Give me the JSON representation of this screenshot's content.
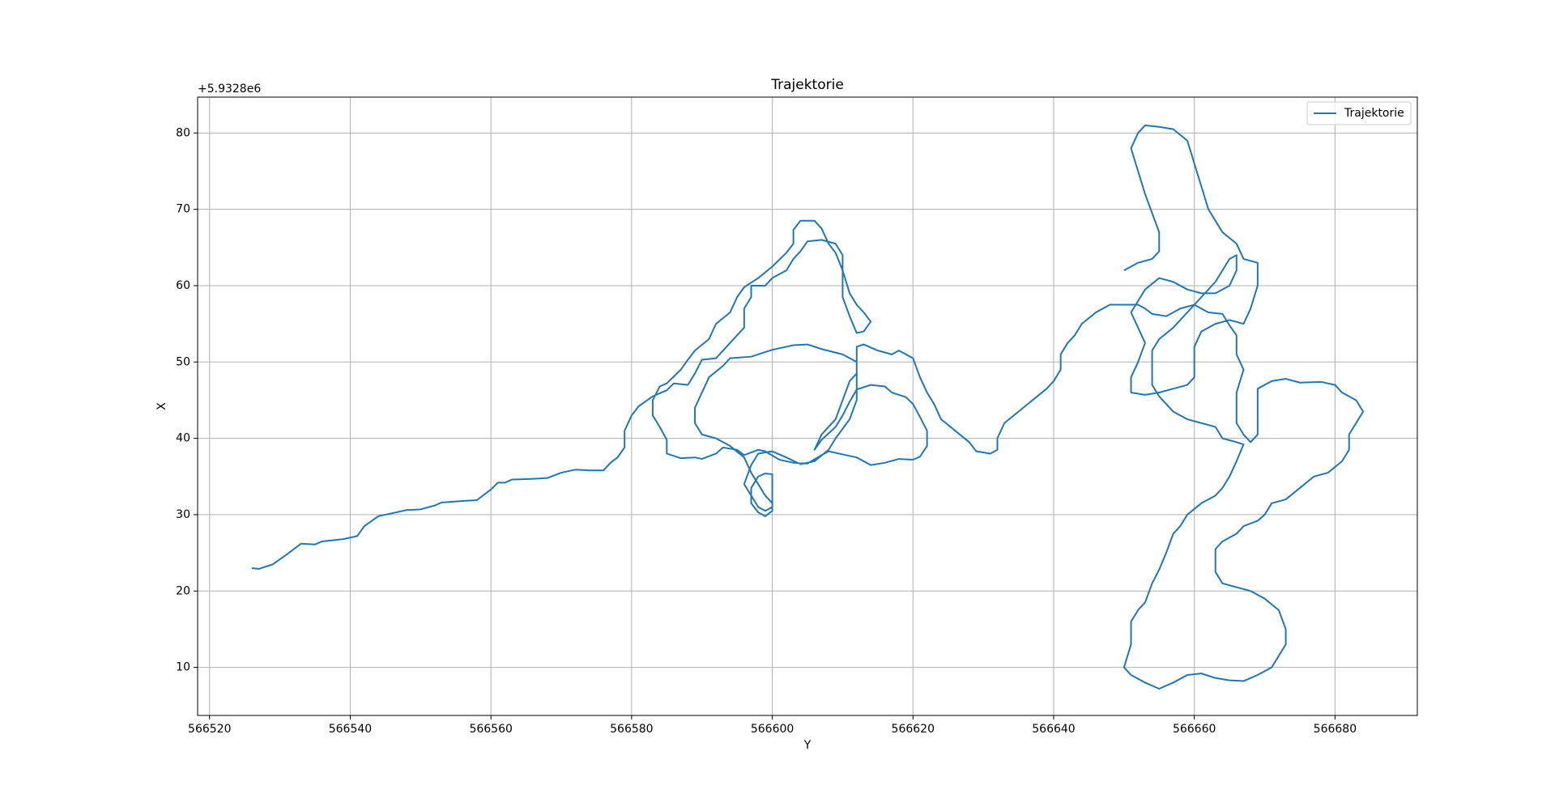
{
  "chart_data": {
    "type": "line",
    "title": "Trajektorie",
    "x_label": "Y",
    "y_label": "X",
    "y_offset_text": "+5.9328e6",
    "xlim": [
      566518.3,
      566691.7
    ],
    "ylim": [
      3.7,
      84.7
    ],
    "xticks": [
      566520,
      566540,
      566560,
      566580,
      566600,
      566620,
      566640,
      566660,
      566680
    ],
    "yticks": [
      10,
      20,
      30,
      40,
      50,
      60,
      70,
      80
    ],
    "grid": true,
    "legend": "upper right",
    "x": [
      566526,
      566527,
      566529,
      566531,
      566533,
      566535,
      566536,
      566539,
      566541,
      566542,
      566544,
      566546,
      566548,
      566550,
      566552,
      566553,
      566556,
      566558,
      566560,
      566561,
      566562,
      566563,
      566566,
      566568,
      566570,
      566572,
      566574,
      566576,
      566577,
      566578,
      566579,
      566579,
      566580,
      566581,
      566583,
      566585,
      566586,
      566588,
      566589,
      566590,
      566592,
      566594,
      566596,
      566596,
      566597,
      566597,
      566599,
      566600,
      566602,
      566603,
      566604,
      566605,
      566607,
      566609,
      566610,
      566610,
      566610,
      566611,
      566612,
      566613,
      566614,
      566613,
      566612,
      566611,
      566610,
      566609,
      566608,
      566607,
      566606,
      566604,
      566603,
      566603,
      566602,
      566600,
      566598,
      566596,
      566595,
      566594,
      566592,
      566591,
      566589,
      566588,
      566587,
      566585,
      566584,
      566583,
      566583,
      566584,
      566585,
      566585,
      566587,
      566589,
      566590,
      566592,
      566593,
      566595,
      566596,
      566598,
      566599,
      566601,
      566603,
      566605,
      566607,
      566608,
      566610,
      566612,
      566614,
      566616,
      566618,
      566620,
      566621,
      566622,
      566622,
      566621,
      566620,
      566619,
      566617,
      566616,
      566614,
      566612,
      566611,
      566610,
      566609,
      566607,
      566606,
      566607,
      566609,
      566610,
      566611,
      566612,
      566612,
      566610,
      566607,
      566605,
      566603,
      566600,
      566597,
      566594,
      566593,
      566591,
      566590,
      566589,
      566589,
      566590,
      566592,
      566594,
      566596,
      566597,
      566598,
      566599,
      566600,
      566600,
      566599,
      566598,
      566597,
      566597,
      566598,
      566599,
      566600,
      566600,
      566600,
      566599,
      566598,
      566597,
      566596,
      566597,
      566598,
      566600,
      566602,
      566604,
      566606,
      566608,
      566609,
      566611,
      566612,
      566612,
      566612,
      566613,
      566615,
      566617,
      566618,
      566620,
      566621,
      566622,
      566623,
      566624,
      566626,
      566628,
      566629,
      566631,
      566632,
      566632,
      566633,
      566635,
      566637,
      566639,
      566640,
      566641,
      566641,
      566642,
      566643,
      566644,
      566646,
      566648,
      566650,
      566652,
      566653,
      566654,
      566656,
      566658,
      566660,
      566662,
      566664,
      566665,
      566666,
      566666,
      566667,
      566666,
      566666,
      566666,
      566667,
      566668,
      566669,
      566669,
      566669,
      566669,
      566671,
      566673,
      566675,
      566678,
      566680,
      566681,
      566683,
      566684,
      566683,
      566682,
      566682,
      566681,
      566679,
      566677,
      566675,
      566673,
      566671,
      566670,
      566669,
      566667,
      566666,
      566664,
      566663,
      566663,
      566663,
      566664,
      566666,
      566668,
      566670,
      566672,
      566673,
      566673,
      566672,
      566671,
      566669,
      566667,
      566665,
      566663,
      566661,
      566659,
      566657,
      566655,
      566653,
      566651,
      566650,
      566651,
      566651,
      566652,
      566653,
      566654,
      566655,
      566656,
      566657,
      566658,
      566659,
      566661,
      566663,
      566664,
      566665,
      566666,
      566667,
      566666,
      566664,
      566663,
      566661,
      566659,
      566657,
      566656,
      566655,
      566654,
      566654,
      566654,
      566655,
      566657,
      566659,
      566661,
      566663,
      566664,
      566665,
      566666,
      566666,
      566665,
      566663,
      566661,
      566659,
      566657,
      566655,
      566653,
      566652,
      566651,
      566652,
      566653,
      566652,
      566651,
      566651,
      566653,
      566655,
      566657,
      566659,
      566660,
      566660,
      566660,
      566661,
      566663,
      566665,
      566667,
      566668,
      566669,
      566669,
      566667,
      566666,
      566664,
      566663,
      566662,
      566661,
      566660,
      566659,
      566657,
      566655,
      566653,
      566652,
      566651,
      566652,
      566653,
      566654,
      566655,
      566655,
      566654,
      566652,
      566650
    ],
    "series": [
      {
        "name": "Trajektorie",
        "color": "#1f77b4",
        "values": [
          23,
          22.9,
          23.5,
          24.8,
          26.2,
          26.1,
          26.5,
          26.8,
          27.2,
          28.5,
          29.8,
          30.2,
          30.6,
          30.7,
          31.2,
          31.6,
          31.8,
          31.9,
          33.3,
          34.2,
          34.2,
          34.6,
          34.7,
          34.8,
          35.5,
          35.9,
          35.8,
          35.8,
          36.8,
          37.5,
          38.8,
          41,
          43,
          44.2,
          45.5,
          46.3,
          47.2,
          47,
          48.5,
          50.3,
          50.5,
          52.5,
          54.5,
          57,
          58.5,
          60,
          60,
          61,
          62,
          63.5,
          64.5,
          65.8,
          66,
          65.5,
          64,
          61,
          58.5,
          56,
          53.8,
          54,
          55.3,
          56.5,
          57.5,
          59,
          62,
          64.3,
          65.5,
          67.5,
          68.5,
          68.5,
          67.3,
          65.5,
          64.3,
          62.5,
          61,
          59.8,
          58.5,
          56.5,
          55,
          53,
          51.5,
          50.3,
          49,
          47.2,
          46.8,
          45,
          43,
          41.5,
          39.8,
          38,
          37.4,
          37.5,
          37.3,
          38,
          38.8,
          38.5,
          37.8,
          38.5,
          38.3,
          37.2,
          36.8,
          36.7,
          37.8,
          38.3,
          37.9,
          37.5,
          36.5,
          36.8,
          37.3,
          37.2,
          37.6,
          39,
          41,
          42.8,
          44.5,
          45.4,
          46,
          46.8,
          47,
          46.4,
          44.8,
          43,
          41.5,
          39.8,
          38.5,
          40.5,
          42.5,
          45,
          47.5,
          48.5,
          50,
          51,
          51.7,
          52.3,
          52.2,
          51.6,
          50.7,
          50.5,
          49.5,
          48,
          46,
          44,
          42,
          40.5,
          40,
          39,
          37.5,
          35.5,
          34,
          32.5,
          31.5,
          30.5,
          29.8,
          30.3,
          31.5,
          33.5,
          35,
          35.4,
          35.3,
          33,
          31,
          30.5,
          31,
          32.5,
          34,
          36.5,
          38,
          38.3,
          37.5,
          36.6,
          37,
          38.5,
          40,
          42.5,
          45,
          48,
          52,
          52.3,
          51.5,
          51,
          51.5,
          50.5,
          48,
          46,
          44.5,
          42.5,
          41,
          39.5,
          38.3,
          38,
          38.5,
          40,
          42,
          43.5,
          45,
          46.5,
          47.5,
          49,
          51,
          52.5,
          53.5,
          55,
          56.5,
          57.5,
          57.5,
          57.5,
          57,
          56.3,
          56,
          57,
          57.5,
          56.5,
          56.3,
          54.8,
          53.5,
          51,
          49,
          46,
          44,
          42,
          40.5,
          39.5,
          40.5,
          42.5,
          45,
          46.5,
          47.5,
          47.8,
          47.3,
          47.4,
          47,
          46,
          45,
          43.5,
          42,
          40.5,
          38.5,
          37,
          35.5,
          35,
          33.5,
          32,
          31.5,
          30,
          29.2,
          28.5,
          27.5,
          26.5,
          25.5,
          24,
          22.5,
          21,
          20.5,
          20,
          19,
          17.5,
          15,
          13,
          11.5,
          10,
          9,
          8.2,
          8.3,
          8.6,
          9.2,
          9,
          8,
          7.2,
          8,
          9,
          10,
          13,
          16,
          17.5,
          18.5,
          21,
          22.8,
          25,
          27.5,
          28.5,
          30,
          31.5,
          32.5,
          33.5,
          35,
          37,
          39.2,
          39.5,
          40,
          41.5,
          42,
          42.5,
          43.5,
          44.5,
          45.5,
          47,
          49.5,
          51.5,
          53,
          54.5,
          56.5,
          58.5,
          60.5,
          62,
          63.5,
          64,
          62,
          60,
          59,
          59,
          59.5,
          60.5,
          61,
          59.5,
          58,
          56.5,
          54.5,
          52.5,
          50,
          48,
          46,
          45.7,
          46,
          46.5,
          47,
          48,
          50,
          52,
          54,
          55,
          55.5,
          55,
          57,
          60,
          63,
          63.5,
          65.5,
          67,
          68.5,
          70,
          73,
          76,
          79,
          80.5,
          80.8,
          81,
          80,
          78,
          75,
          72,
          69.5,
          67,
          64.5,
          63.5,
          63,
          62
        ]
      }
    ]
  }
}
